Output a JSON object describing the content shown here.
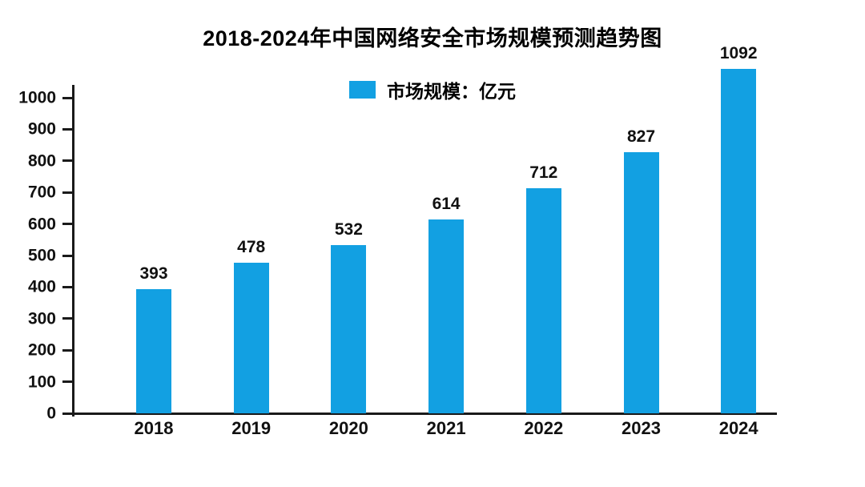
{
  "chart_data": {
    "type": "bar",
    "title": "2018-2024年中国网络安全市场规模预测趋势图",
    "legend": {
      "label": "市场规模：亿元",
      "position": "top-center"
    },
    "categories": [
      "2018",
      "2019",
      "2020",
      "2021",
      "2022",
      "2023",
      "2024"
    ],
    "series": [
      {
        "name": "市场规模",
        "unit": "亿元",
        "values": [
          393,
          478,
          532,
          614,
          712,
          827,
          1092
        ]
      }
    ],
    "value_labels": [
      "393",
      "478",
      "532",
      "614",
      "712",
      "827",
      "1092"
    ],
    "ylim": [
      0,
      1000
    ],
    "y_ticks": [
      0,
      100,
      200,
      300,
      400,
      500,
      600,
      700,
      800,
      900,
      1000
    ],
    "grid": false,
    "value_labels_shown": true,
    "colors": {
      "bar": "#12A0E2",
      "axis": "#1a1a1a",
      "text": "#111111",
      "background": "#ffffff"
    }
  }
}
